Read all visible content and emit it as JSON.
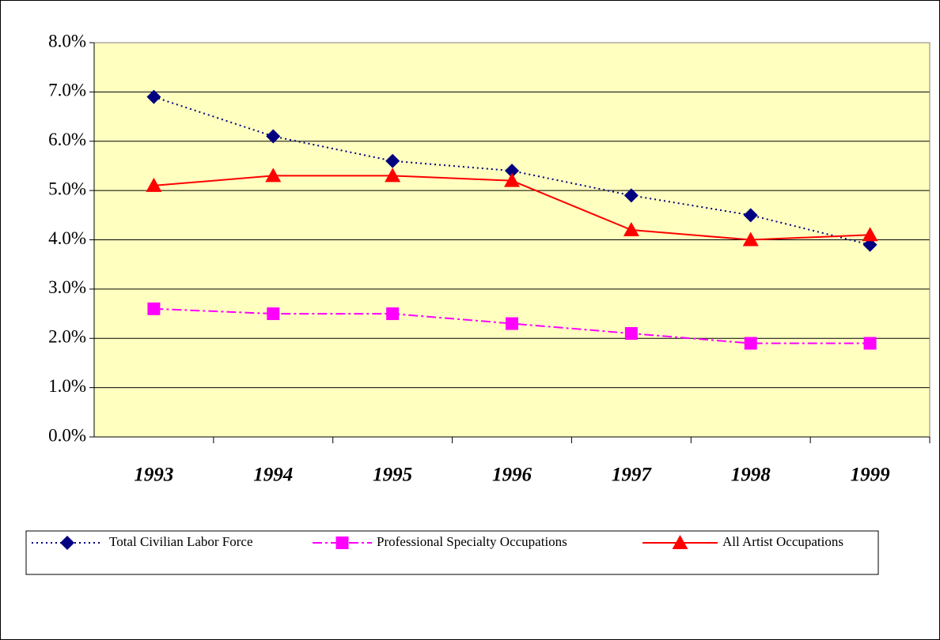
{
  "chart_data": {
    "type": "line",
    "categories": [
      "1993",
      "1994",
      "1995",
      "1996",
      "1997",
      "1998",
      "1999"
    ],
    "series": [
      {
        "name": "Total Civilian Labor Force",
        "color": "#000080",
        "dash": "dotted",
        "marker": "diamond",
        "values": [
          6.9,
          6.1,
          5.6,
          5.4,
          4.9,
          4.5,
          3.9
        ]
      },
      {
        "name": "Professional Specialty Occupations",
        "color": "#ff00ff",
        "dash": "dashdot",
        "marker": "square",
        "values": [
          2.6,
          2.5,
          2.5,
          2.3,
          2.1,
          1.9,
          1.9
        ]
      },
      {
        "name": "All Artist Occupations",
        "color": "#ff0000",
        "dash": "solid",
        "marker": "triangle",
        "values": [
          5.1,
          5.3,
          5.3,
          5.2,
          4.2,
          4.0,
          4.1
        ]
      }
    ],
    "ylim": [
      0,
      8
    ],
    "yticks": [
      {
        "value": 0,
        "label": "0.0%"
      },
      {
        "value": 1,
        "label": "1.0%"
      },
      {
        "value": 2,
        "label": "2.0%"
      },
      {
        "value": 3,
        "label": "3.0%"
      },
      {
        "value": 4,
        "label": "4.0%"
      },
      {
        "value": 5,
        "label": "5.0%"
      },
      {
        "value": 6,
        "label": "6.0%"
      },
      {
        "value": 7,
        "label": "7.0%"
      },
      {
        "value": 8,
        "label": "8.0%"
      }
    ],
    "grid": true,
    "plot_background": "#ffffc0",
    "legend": "bottom"
  }
}
